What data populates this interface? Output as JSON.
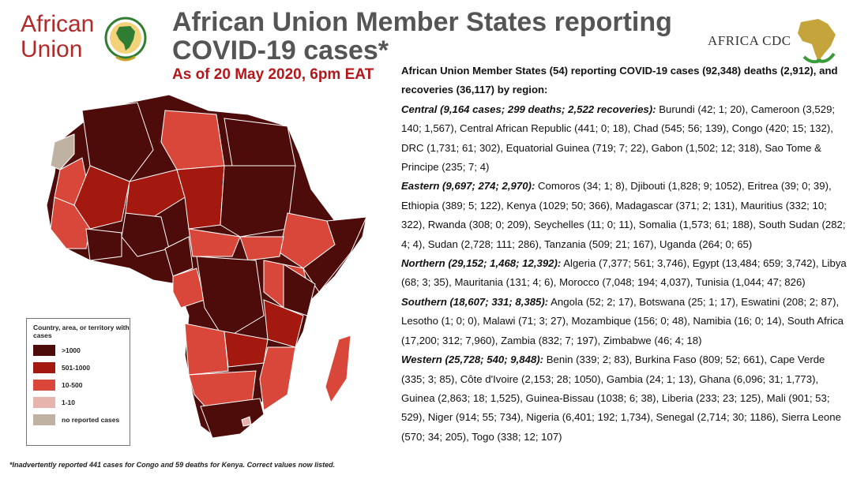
{
  "logos": {
    "au_word_1": "African",
    "au_word_2": "Union",
    "cdc_text": "AFRICA CDC"
  },
  "title": "African Union Member States reporting COVID-19 cases*",
  "as_of": "As of 20 May 2020, 6pm EAT",
  "intro": "African Union Member States (54) reporting COVID-19 cases (92,348) deaths (2,912), and recoveries (36,117) by region:",
  "regions": [
    {
      "label": "Central (9,164 cases; 299 deaths; 2,522 recoveries):",
      "countries": "Burundi (42; 1; 20), Cameroon (3,529; 140; 1,567), Central African Republic (441; 0; 18), Chad (545; 56; 139), Congo (420; 15; 132), DRC (1,731; 61; 302), Equatorial Guinea (719; 7; 22), Gabon (1,502; 12; 318), Sao Tome & Principe (235; 7; 4)"
    },
    {
      "label": "Eastern (9,697; 274; 2,970):",
      "countries": "Comoros (34; 1; 8), Djibouti (1,828; 9; 1052), Eritrea (39; 0; 39), Ethiopia (389; 5; 122), Kenya (1029; 50; 366), Madagascar (371; 2; 131), Mauritius (332; 10; 322), Rwanda (308; 0; 209), Seychelles (11; 0; 11), Somalia (1,573; 61; 188), South Sudan (282; 4; 4), Sudan (2,728; 111; 286), Tanzania (509; 21; 167), Uganda (264; 0; 65)"
    },
    {
      "label": "Northern (29,152; 1,468; 12,392):",
      "countries": "Algeria (7,377; 561; 3,746), Egypt (13,484; 659; 3,742), Libya (68; 3; 35), Mauritania (131; 4; 6), Morocco (7,048; 194; 4,037), Tunisia (1,044; 47; 826)"
    },
    {
      "label": "Southern (18,607; 331; 8,385):",
      "countries": "Angola (52; 2; 17), Botswana (25; 1; 17), Eswatini (208; 2; 87), Lesotho (1; 0; 0), Malawi (71; 3; 27), Mozambique (156; 0; 48), Namibia (16; 0; 14), South Africa (17,200; 312; 7,960), Zambia (832; 7; 197), Zimbabwe (46; 4; 18)"
    },
    {
      "label": "Western (25,728; 540; 9,848):",
      "countries": "Benin (339; 2; 83), Burkina Faso (809; 52; 661), Cape Verde (335; 3; 85), Côte d'Ivoire (2,153; 28; 1050), Gambia (24; 1; 13), Ghana (6,096; 31; 1,773), Guinea (2,863; 18; 1,525), Guinea-Bissau (1038; 6; 38), Liberia (233; 23; 125), Mali (901; 53; 529), Niger (914; 55; 734), Nigeria (6,401; 192; 1,734), Senegal (2,714; 30; 1186), Sierra Leone (570; 34; 205), Togo (338; 12; 107)"
    }
  ],
  "legend": {
    "title": "Country, area, or territory with cases",
    "items": [
      {
        "label": ">1000",
        "color": "#4d0c0a"
      },
      {
        "label": "501-1000",
        "color": "#a3180f"
      },
      {
        "label": "10-500",
        "color": "#d9473a"
      },
      {
        "label": "1-10",
        "color": "#e6b3ad"
      },
      {
        "label": "no reported cases",
        "color": "#bfb2a3"
      }
    ]
  },
  "footnote": "*Inadvertently reported 441 cases for Congo and 59 deaths for Kenya. Correct values now listed."
}
